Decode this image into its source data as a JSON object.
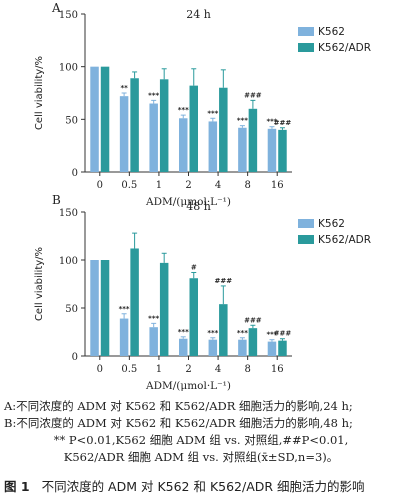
{
  "colors": {
    "k562": "#7fb2dd",
    "k562_adr": "#2a9a9c",
    "axis": "#333333",
    "text": "#222222"
  },
  "chart_data": [
    {
      "type": "bar",
      "panel_label": "A",
      "title": "24 h",
      "xlabel": "ADM/(μmol·L⁻¹)",
      "ylabel": "Cell viability/%",
      "ylim": [
        0,
        150
      ],
      "yticks": [
        "0",
        "50",
        "100",
        "150"
      ],
      "categories": [
        "0",
        "0.5",
        "1",
        "2",
        "4",
        "8",
        "16"
      ],
      "legend_position": "top-right",
      "series": [
        {
          "name": "K562",
          "color": "#7fb2dd",
          "values": [
            100,
            72,
            65,
            51,
            48,
            42,
            41
          ],
          "errors": [
            0,
            3,
            3,
            3,
            3,
            2,
            2
          ],
          "labels": [
            "",
            "**",
            "***",
            "***",
            "***",
            "***",
            "***"
          ]
        },
        {
          "name": "K562/ADR",
          "color": "#2a9a9c",
          "values": [
            100,
            89,
            88,
            82,
            80,
            60,
            40
          ],
          "errors": [
            0,
            6,
            10,
            16,
            17,
            8,
            2
          ],
          "labels": [
            "",
            "",
            "",
            "",
            "",
            "###",
            "###"
          ]
        }
      ]
    },
    {
      "type": "bar",
      "panel_label": "B",
      "title": "48 h",
      "xlabel": "ADM/(μmol·L⁻¹)",
      "ylabel": "Cell viability/%",
      "ylim": [
        0,
        150
      ],
      "yticks": [
        "0",
        "50",
        "100",
        "150"
      ],
      "categories": [
        "0",
        "0.5",
        "1",
        "2",
        "4",
        "8",
        "16"
      ],
      "legend_position": "top-right",
      "series": [
        {
          "name": "K562",
          "color": "#7fb2dd",
          "values": [
            100,
            39,
            30,
            18,
            17,
            17,
            15
          ],
          "errors": [
            0,
            5,
            4,
            2,
            2,
            2,
            2
          ],
          "labels": [
            "",
            "***",
            "***",
            "***",
            "***",
            "***",
            "***"
          ]
        },
        {
          "name": "K562/ADR",
          "color": "#2a9a9c",
          "values": [
            100,
            112,
            97,
            81,
            54,
            29,
            16
          ],
          "errors": [
            0,
            16,
            10,
            6,
            19,
            3,
            2
          ],
          "labels": [
            "",
            "",
            "",
            "#",
            "###",
            "###",
            "###"
          ]
        }
      ]
    }
  ],
  "caption": {
    "line1": "A:不同浓度的 ADM 对 K562 和 K562/ADR 细胞活力的影响,24 h;",
    "line2": "B:不同浓度的 ADM 对 K562 和 K562/ADR 细胞活力的影响,48 h;",
    "line3": "** P<0.01,K562 细胞 ADM 组 vs. 对照组,##P<0.01,",
    "line4": "K562/ADR 细胞 ADM 组 vs. 对照组(x̄±SD,n=3)。"
  },
  "figure_title": {
    "number": "图 1",
    "text": "不同浓度的 ADM 对 K562 和 K562/ADR 细胞活力的影响"
  }
}
